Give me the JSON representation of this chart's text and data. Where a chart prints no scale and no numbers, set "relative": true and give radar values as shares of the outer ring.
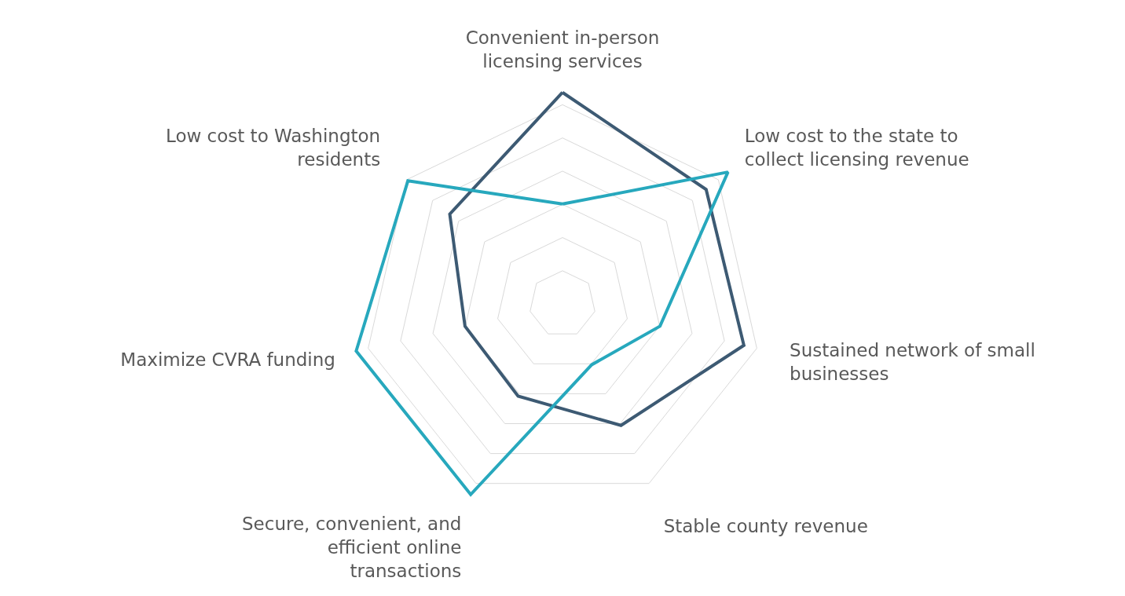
{
  "chart_data": {
    "type": "radar",
    "relative": true,
    "grid": true,
    "marker": "none",
    "line_style": "solid",
    "categories": [
      "Convenient in-person licensing services",
      "Low cost to the state to collect licensing revenue",
      "Sustained network of small businesses",
      "Stable county revenue",
      "Secure, convenient, and efficient online transactions",
      "Maximize CVRA funding",
      "Low cost to Washington residents"
    ],
    "series": [
      {
        "color": "#3d5a73",
        "values": [
          0.91,
          0.79,
          0.8,
          0.58,
          0.44,
          0.43,
          0.62
        ]
      },
      {
        "color": "#27a8bd",
        "values": [
          0.43,
          0.91,
          0.43,
          0.29,
          0.91,
          0.91,
          0.85
        ]
      }
    ]
  }
}
